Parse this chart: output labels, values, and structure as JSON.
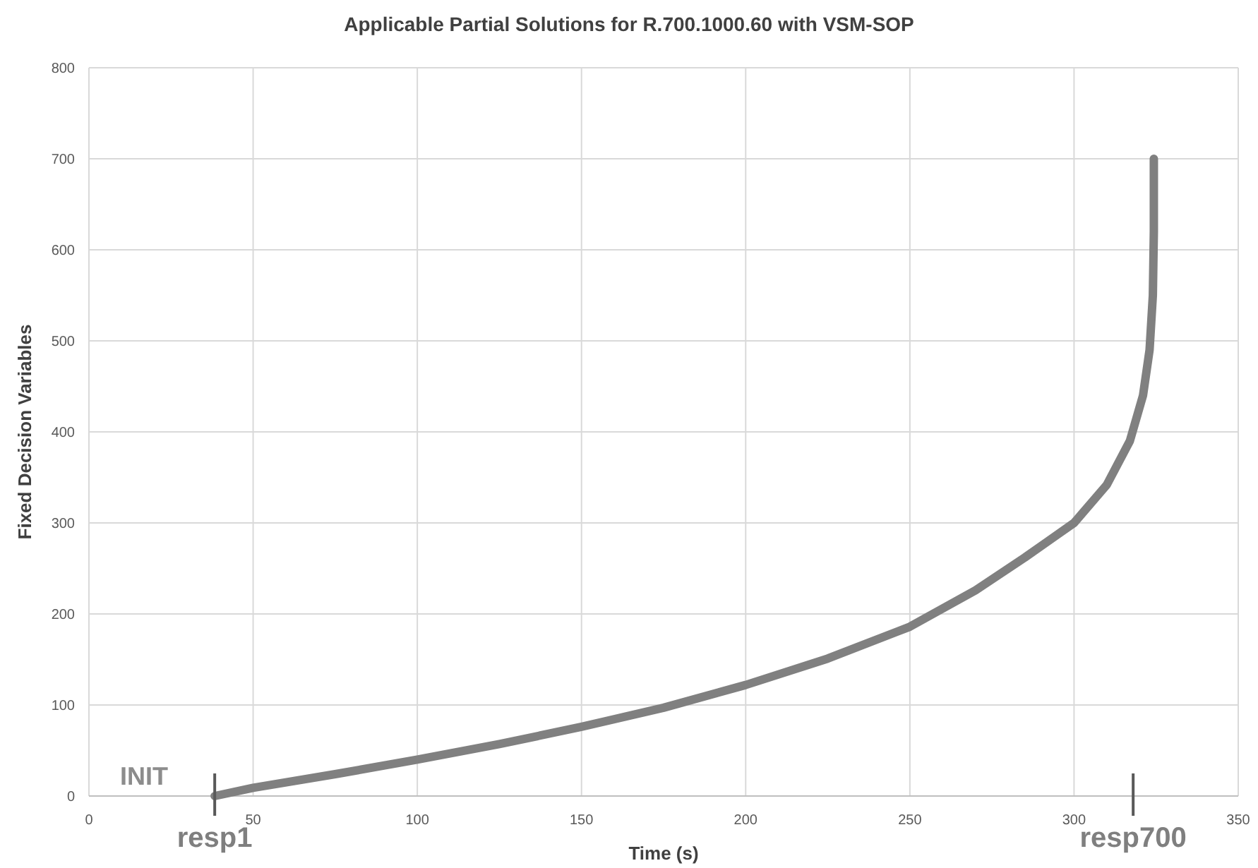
{
  "chart_data": {
    "type": "line",
    "title": "Applicable Partial Solutions for R.700.1000.60 with VSM-SOP",
    "xlabel": "Time (s)",
    "ylabel": "Fixed Decision Variables",
    "x": [
      38.3,
      50,
      75,
      100,
      125,
      150,
      175,
      200,
      225,
      250,
      270,
      285,
      300,
      310,
      317,
      321,
      323,
      324,
      324.3,
      324.3
    ],
    "series": [
      {
        "color": "#808080",
        "values": [
          0,
          9,
          24,
          40,
          57,
          76,
          97,
          122,
          151,
          186,
          226,
          262,
          300,
          342,
          390,
          440,
          490,
          550,
          620,
          700
        ]
      }
    ],
    "xlim": [
      0,
      350
    ],
    "xticks": [
      0,
      50,
      100,
      150,
      200,
      250,
      300,
      350
    ],
    "ylim": [
      0,
      800
    ],
    "yticks": [
      0,
      100,
      200,
      300,
      400,
      500,
      600,
      700,
      800
    ],
    "grid": true,
    "marker": "none",
    "line_style": "solid",
    "ref_lines": [
      {
        "axis": "x",
        "value": 318,
        "label": "resp700"
      }
    ],
    "annotations": [
      "INIT",
      {
        "text": "resp1",
        "x": 38.3,
        "y": 0
      }
    ]
  }
}
